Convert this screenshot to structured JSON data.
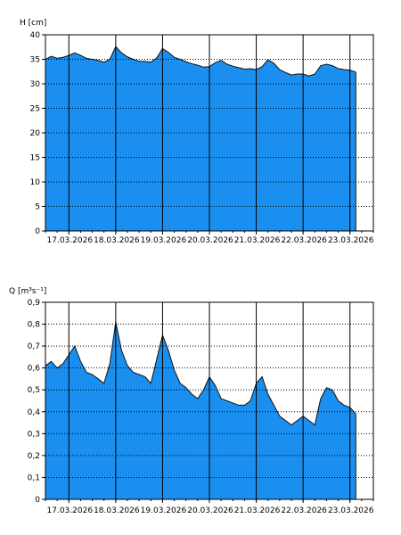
{
  "colors": {
    "area_fill": "#1a8fef",
    "area_stroke": "#111111",
    "grid_dotted": "#000000",
    "day_line": "#000000",
    "background": "#ffffff"
  },
  "chart_data": [
    {
      "type": "area",
      "ylabel": "H [cm]",
      "ylim": [
        0,
        40
      ],
      "yticks": [
        "0",
        "5",
        "10",
        "15",
        "20",
        "25",
        "30",
        "35",
        "40"
      ],
      "xlim": [
        "2026-03-16T12:00",
        "2026-03-23T12:00"
      ],
      "day_lines": [
        "2026-03-17",
        "2026-03-18",
        "2026-03-19",
        "2026-03-20",
        "2026-03-21",
        "2026-03-22",
        "2026-03-23"
      ],
      "xtick_labels": [
        "17.03.2026",
        "18.03.2026",
        "19.03.2026",
        "20.03.2026",
        "21.03.2026",
        "22.03.2026",
        "23.03.2026"
      ],
      "grid": "horizontal dotted",
      "x": [
        "2026-03-16T12:00",
        "2026-03-16T15:00",
        "2026-03-16T18:00",
        "2026-03-16T21:00",
        "2026-03-17T00:00",
        "2026-03-17T03:00",
        "2026-03-17T06:00",
        "2026-03-17T09:00",
        "2026-03-17T12:00",
        "2026-03-17T15:00",
        "2026-03-17T18:00",
        "2026-03-17T21:00",
        "2026-03-18T00:00",
        "2026-03-18T03:00",
        "2026-03-18T06:00",
        "2026-03-18T09:00",
        "2026-03-18T12:00",
        "2026-03-18T15:00",
        "2026-03-18T18:00",
        "2026-03-18T21:00",
        "2026-03-19T00:00",
        "2026-03-19T03:00",
        "2026-03-19T06:00",
        "2026-03-19T09:00",
        "2026-03-19T12:00",
        "2026-03-19T15:00",
        "2026-03-19T18:00",
        "2026-03-19T21:00",
        "2026-03-20T00:00",
        "2026-03-20T03:00",
        "2026-03-20T06:00",
        "2026-03-20T09:00",
        "2026-03-20T12:00",
        "2026-03-20T15:00",
        "2026-03-20T18:00",
        "2026-03-20T21:00",
        "2026-03-21T00:00",
        "2026-03-21T03:00",
        "2026-03-21T06:00",
        "2026-03-21T09:00",
        "2026-03-21T12:00",
        "2026-03-21T15:00",
        "2026-03-21T18:00",
        "2026-03-21T21:00",
        "2026-03-22T00:00",
        "2026-03-22T03:00",
        "2026-03-22T06:00",
        "2026-03-22T09:00",
        "2026-03-22T12:00",
        "2026-03-22T15:00",
        "2026-03-22T18:00",
        "2026-03-22T21:00",
        "2026-03-23T00:00",
        "2026-03-23T03:00"
      ],
      "values": [
        35.0,
        35.6,
        35.2,
        35.4,
        35.8,
        36.3,
        35.8,
        35.2,
        35.0,
        34.8,
        34.4,
        35.0,
        37.6,
        36.3,
        35.5,
        35.0,
        34.6,
        34.6,
        34.4,
        35.3,
        37.2,
        36.4,
        35.4,
        35.0,
        34.5,
        34.1,
        33.8,
        33.4,
        33.5,
        34.3,
        34.8,
        34.0,
        33.6,
        33.3,
        33.0,
        33.1,
        32.9,
        33.5,
        34.9,
        34.2,
        32.9,
        32.3,
        31.8,
        32.0,
        32.0,
        31.6,
        32.0,
        33.7,
        34.0,
        33.7,
        33.1,
        32.9,
        32.8,
        32.4
      ]
    },
    {
      "type": "area",
      "ylabel": "Q [m³s⁻¹]",
      "ylim": [
        0,
        0.9
      ],
      "yticks": [
        "0",
        "0,1",
        "0,2",
        "0,3",
        "0,4",
        "0,5",
        "0,6",
        "0,7",
        "0,8",
        "0,9"
      ],
      "xlim": [
        "2026-03-16T12:00",
        "2026-03-23T12:00"
      ],
      "day_lines": [
        "2026-03-17",
        "2026-03-18",
        "2026-03-19",
        "2026-03-20",
        "2026-03-21",
        "2026-03-22",
        "2026-03-23"
      ],
      "xtick_labels": [
        "17.03.2026",
        "18.03.2026",
        "19.03.2026",
        "20.03.2026",
        "21.03.2026",
        "22.03.2026",
        "23.03.2026"
      ],
      "grid": "horizontal dotted",
      "x": [
        "2026-03-16T12:00",
        "2026-03-16T15:00",
        "2026-03-16T18:00",
        "2026-03-16T21:00",
        "2026-03-17T00:00",
        "2026-03-17T03:00",
        "2026-03-17T06:00",
        "2026-03-17T09:00",
        "2026-03-17T12:00",
        "2026-03-17T15:00",
        "2026-03-17T18:00",
        "2026-03-17T21:00",
        "2026-03-18T00:00",
        "2026-03-18T03:00",
        "2026-03-18T06:00",
        "2026-03-18T09:00",
        "2026-03-18T12:00",
        "2026-03-18T15:00",
        "2026-03-18T18:00",
        "2026-03-18T21:00",
        "2026-03-19T00:00",
        "2026-03-19T03:00",
        "2026-03-19T06:00",
        "2026-03-19T09:00",
        "2026-03-19T12:00",
        "2026-03-19T15:00",
        "2026-03-19T18:00",
        "2026-03-19T21:00",
        "2026-03-20T00:00",
        "2026-03-20T03:00",
        "2026-03-20T06:00",
        "2026-03-20T09:00",
        "2026-03-20T12:00",
        "2026-03-20T15:00",
        "2026-03-20T18:00",
        "2026-03-20T21:00",
        "2026-03-21T00:00",
        "2026-03-21T03:00",
        "2026-03-21T06:00",
        "2026-03-21T09:00",
        "2026-03-21T12:00",
        "2026-03-21T15:00",
        "2026-03-21T18:00",
        "2026-03-21T21:00",
        "2026-03-22T00:00",
        "2026-03-22T03:00",
        "2026-03-22T06:00",
        "2026-03-22T09:00",
        "2026-03-22T12:00",
        "2026-03-22T15:00",
        "2026-03-22T18:00",
        "2026-03-22T21:00",
        "2026-03-23T00:00",
        "2026-03-23T03:00"
      ],
      "values": [
        0.61,
        0.63,
        0.6,
        0.62,
        0.66,
        0.7,
        0.63,
        0.58,
        0.57,
        0.55,
        0.53,
        0.62,
        0.81,
        0.68,
        0.61,
        0.58,
        0.57,
        0.56,
        0.53,
        0.64,
        0.75,
        0.68,
        0.59,
        0.53,
        0.51,
        0.48,
        0.46,
        0.5,
        0.56,
        0.52,
        0.46,
        0.45,
        0.44,
        0.43,
        0.43,
        0.45,
        0.53,
        0.56,
        0.48,
        0.43,
        0.38,
        0.36,
        0.34,
        0.36,
        0.38,
        0.36,
        0.34,
        0.46,
        0.51,
        0.5,
        0.45,
        0.43,
        0.42,
        0.39
      ]
    }
  ]
}
